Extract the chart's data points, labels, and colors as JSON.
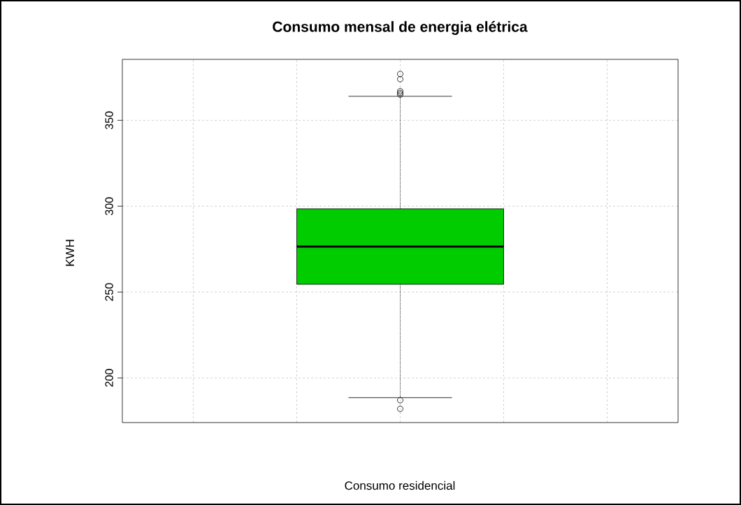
{
  "chart_data": {
    "type": "box",
    "title": "Consumo mensal de energia elétrica",
    "xlabel": "Consumo residencial",
    "ylabel": "KWH",
    "categories": [
      null
    ],
    "boxes": [
      {
        "low": 188.5,
        "q1": 254.5,
        "median": 276.5,
        "q3": 298.5,
        "high": 364,
        "outliers": [
          377,
          374,
          367,
          366,
          365,
          187,
          182
        ]
      }
    ],
    "color": "#00cc00",
    "ylim": [
      174,
      385.5
    ],
    "yticks": [
      200,
      250,
      300,
      350
    ],
    "grid": true,
    "tick_labels": "y"
  }
}
